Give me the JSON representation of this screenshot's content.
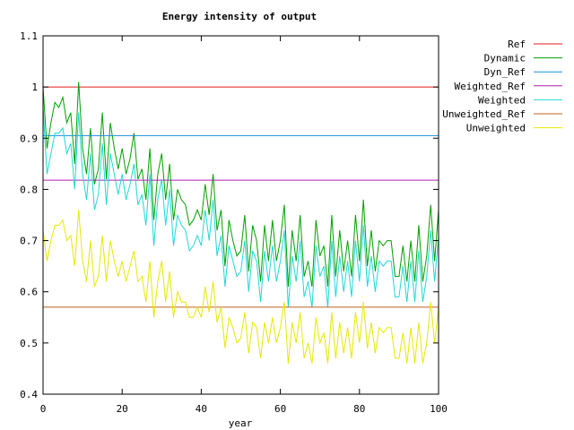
{
  "chart_data": {
    "type": "line",
    "title": "Energy intensity of output",
    "xlabel": "year",
    "ylabel": "",
    "xlim": [
      0,
      100
    ],
    "ylim": [
      0.4,
      1.1
    ],
    "xticks": [
      0,
      20,
      40,
      60,
      80,
      100
    ],
    "xtick_labels": [
      "0",
      "20",
      "40",
      "60",
      "80",
      "100"
    ],
    "yticks": [
      0.4,
      0.5,
      0.6,
      0.7,
      0.8,
      0.9,
      1.0,
      1.1
    ],
    "ytick_labels": [
      "0.4",
      "0.5",
      "0.6",
      "0.7",
      "0.8",
      "0.9",
      "1",
      "1.1"
    ],
    "grid": false,
    "legend_position": "top-right-outside",
    "x": [
      0,
      1,
      2,
      3,
      4,
      5,
      6,
      7,
      8,
      9,
      10,
      11,
      12,
      13,
      14,
      15,
      16,
      17,
      18,
      19,
      20,
      21,
      22,
      23,
      24,
      25,
      26,
      27,
      28,
      29,
      30,
      31,
      32,
      33,
      34,
      35,
      36,
      37,
      38,
      39,
      40,
      41,
      42,
      43,
      44,
      45,
      46,
      47,
      48,
      49,
      50,
      51,
      52,
      53,
      54,
      55,
      56,
      57,
      58,
      59,
      60,
      61,
      62,
      63,
      64,
      65,
      66,
      67,
      68,
      69,
      70,
      71,
      72,
      73,
      74,
      75,
      76,
      77,
      78,
      79,
      80,
      81,
      82,
      83,
      84,
      85,
      86,
      87,
      88,
      89,
      90,
      91,
      92,
      93,
      94,
      95,
      96,
      97,
      98,
      99,
      100
    ],
    "series": [
      {
        "name": "Ref",
        "color": "#e41a1c",
        "constant": 1.0
      },
      {
        "name": "Dynamic",
        "color": "#00a000",
        "values": [
          1.0,
          0.88,
          0.93,
          0.97,
          0.96,
          0.98,
          0.93,
          0.95,
          0.85,
          1.01,
          0.88,
          0.83,
          0.92,
          0.81,
          0.84,
          0.95,
          0.82,
          0.93,
          0.88,
          0.84,
          0.88,
          0.83,
          0.86,
          0.91,
          0.82,
          0.84,
          0.78,
          0.88,
          0.74,
          0.83,
          0.87,
          0.78,
          0.85,
          0.74,
          0.8,
          0.78,
          0.77,
          0.73,
          0.74,
          0.76,
          0.74,
          0.81,
          0.75,
          0.83,
          0.72,
          0.76,
          0.65,
          0.74,
          0.7,
          0.67,
          0.68,
          0.75,
          0.64,
          0.73,
          0.7,
          0.62,
          0.73,
          0.66,
          0.74,
          0.66,
          0.7,
          0.77,
          0.61,
          0.72,
          0.66,
          0.75,
          0.63,
          0.66,
          0.61,
          0.74,
          0.67,
          0.69,
          0.61,
          0.75,
          0.63,
          0.72,
          0.64,
          0.7,
          0.63,
          0.75,
          0.66,
          0.78,
          0.65,
          0.72,
          0.64,
          0.7,
          0.69,
          0.7,
          0.7,
          0.63,
          0.63,
          0.69,
          0.62,
          0.7,
          0.62,
          0.73,
          0.62,
          0.67,
          0.77,
          0.66,
          0.76
        ]
      },
      {
        "name": "Dyn_Ref",
        "color": "#1a8fdc",
        "constant": 0.905
      },
      {
        "name": "Weighted_Ref",
        "color": "#b020b0",
        "constant": 0.818
      },
      {
        "name": "Weighted",
        "color": "#20d8d8",
        "values": [
          0.96,
          0.83,
          0.87,
          0.91,
          0.91,
          0.92,
          0.87,
          0.89,
          0.8,
          0.95,
          0.83,
          0.78,
          0.87,
          0.76,
          0.79,
          0.89,
          0.77,
          0.87,
          0.83,
          0.79,
          0.83,
          0.78,
          0.81,
          0.85,
          0.77,
          0.79,
          0.73,
          0.83,
          0.69,
          0.78,
          0.82,
          0.73,
          0.8,
          0.69,
          0.75,
          0.73,
          0.72,
          0.68,
          0.69,
          0.71,
          0.69,
          0.76,
          0.7,
          0.78,
          0.67,
          0.71,
          0.61,
          0.69,
          0.66,
          0.63,
          0.64,
          0.7,
          0.6,
          0.68,
          0.66,
          0.58,
          0.68,
          0.62,
          0.69,
          0.62,
          0.66,
          0.72,
          0.57,
          0.67,
          0.62,
          0.7,
          0.59,
          0.62,
          0.57,
          0.69,
          0.63,
          0.65,
          0.57,
          0.7,
          0.59,
          0.67,
          0.6,
          0.66,
          0.59,
          0.7,
          0.62,
          0.73,
          0.61,
          0.67,
          0.6,
          0.66,
          0.65,
          0.66,
          0.66,
          0.59,
          0.59,
          0.65,
          0.58,
          0.66,
          0.58,
          0.68,
          0.58,
          0.63,
          0.72,
          0.62,
          0.71
        ]
      },
      {
        "name": "Unweighted_Ref",
        "color": "#c06020",
        "constant": 0.57
      },
      {
        "name": "Unweighted",
        "color": "#e8e800",
        "values": [
          0.72,
          0.66,
          0.7,
          0.73,
          0.73,
          0.74,
          0.7,
          0.71,
          0.65,
          0.76,
          0.66,
          0.62,
          0.7,
          0.61,
          0.63,
          0.71,
          0.62,
          0.7,
          0.66,
          0.63,
          0.66,
          0.62,
          0.65,
          0.68,
          0.62,
          0.63,
          0.58,
          0.66,
          0.55,
          0.62,
          0.66,
          0.58,
          0.64,
          0.55,
          0.6,
          0.58,
          0.58,
          0.55,
          0.55,
          0.57,
          0.55,
          0.61,
          0.56,
          0.62,
          0.54,
          0.57,
          0.49,
          0.55,
          0.53,
          0.5,
          0.51,
          0.56,
          0.48,
          0.54,
          0.53,
          0.47,
          0.54,
          0.5,
          0.55,
          0.5,
          0.53,
          0.58,
          0.46,
          0.54,
          0.5,
          0.56,
          0.47,
          0.5,
          0.46,
          0.55,
          0.5,
          0.52,
          0.46,
          0.56,
          0.47,
          0.54,
          0.48,
          0.53,
          0.47,
          0.56,
          0.5,
          0.58,
          0.49,
          0.54,
          0.48,
          0.53,
          0.52,
          0.53,
          0.53,
          0.47,
          0.47,
          0.52,
          0.46,
          0.53,
          0.46,
          0.54,
          0.46,
          0.5,
          0.58,
          0.5,
          0.57
        ]
      }
    ]
  }
}
